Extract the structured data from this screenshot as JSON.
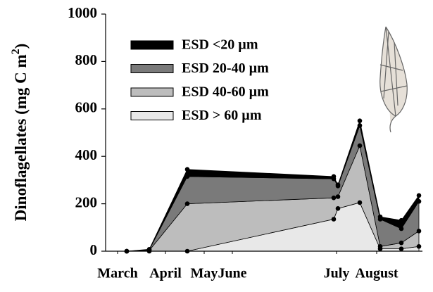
{
  "chart_data": {
    "type": "stacked_area",
    "ylabel": {
      "text": "Dinoflagellates (mg C m",
      "superscript": "2",
      "close": ")"
    },
    "x": [
      60,
      76,
      103,
      207,
      210,
      225.5,
      240,
      255,
      267.5
    ],
    "xlim": [
      45,
      270
    ],
    "xticks": [
      {
        "value": 53.5,
        "label": "March"
      },
      {
        "value": 87.5,
        "label": "April"
      },
      {
        "value": 115,
        "label": "May"
      },
      {
        "value": 135,
        "label": "June"
      },
      {
        "value": 209,
        "label": "July"
      },
      {
        "value": 237.5,
        "label": "August"
      }
    ],
    "ylim": [
      0,
      1000
    ],
    "yticks": [
      0,
      200,
      400,
      600,
      800,
      1000
    ],
    "legend": "upper-left",
    "series": [
      {
        "name": "ESD <20 µm",
        "color": "#000000",
        "values": [
          0,
          2,
          30,
          10,
          5,
          20,
          10,
          35,
          25
        ]
      },
      {
        "name": "ESD 20-40 µm",
        "color": "#7a7a7a",
        "values": [
          0,
          3,
          115,
          80,
          45,
          85,
          115,
          60,
          125
        ]
      },
      {
        "name": "ESD 40-60 µm",
        "color": "#bdbdbd",
        "values": [
          0,
          3,
          200,
          90,
          50,
          240,
          10,
          25,
          65
        ]
      },
      {
        "name": "ESD > 60 µm",
        "color": "#e8e8e8",
        "values": [
          0,
          0,
          0,
          135,
          180,
          205,
          10,
          10,
          20
        ]
      }
    ]
  }
}
